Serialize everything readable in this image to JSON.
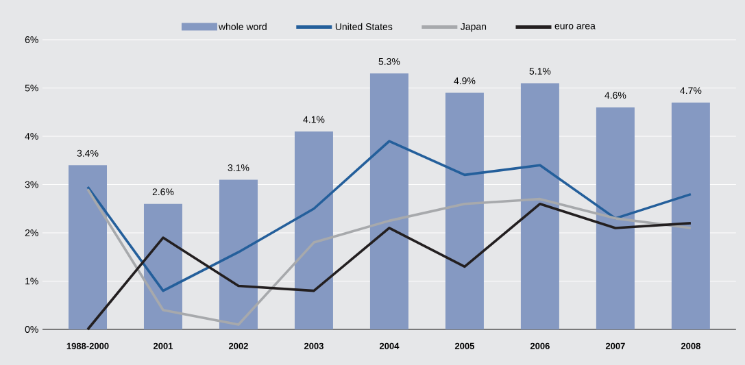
{
  "chart_data": {
    "type": "bar",
    "categories": [
      "1988-2000",
      "2001",
      "2002",
      "2003",
      "2004",
      "2005",
      "2006",
      "2007",
      "2008"
    ],
    "series": [
      {
        "name": "whole word",
        "color": "#8599c2",
        "values": [
          3.4,
          2.6,
          3.1,
          4.1,
          5.3,
          4.9,
          5.1,
          4.6,
          4.7
        ],
        "value_labels": [
          "3.4%",
          "2.6%",
          "3.1%",
          "4.1%",
          "5.3%",
          "4.9%",
          "5.1%",
          "4.6%",
          "4.7%"
        ]
      },
      {
        "name": "United States",
        "type": "line",
        "color": "#245f9b",
        "values": [
          2.95,
          0.8,
          1.6,
          2.5,
          3.9,
          3.2,
          3.4,
          2.3,
          2.8
        ]
      },
      {
        "name": "Japan",
        "type": "line",
        "color": "#a7a9ac",
        "values": [
          2.9,
          0.4,
          0.1,
          1.8,
          2.25,
          2.6,
          2.7,
          2.3,
          2.1
        ]
      },
      {
        "name": "euro area",
        "type": "line",
        "color": "#231f20",
        "values": [
          0,
          1.9,
          0.9,
          0.8,
          2.1,
          1.3,
          2.6,
          2.1,
          2.2
        ]
      }
    ],
    "ylim": [
      0,
      6
    ],
    "yticks": [
      {
        "value": 0,
        "label": "0%"
      },
      {
        "value": 1,
        "label": "1%"
      },
      {
        "value": 2,
        "label": "2%"
      },
      {
        "value": 3,
        "label": "3%"
      },
      {
        "value": 4,
        "label": "4%"
      },
      {
        "value": 5,
        "label": "5%"
      },
      {
        "value": 6,
        "label": "6%"
      }
    ],
    "grid": "y",
    "legend": "top",
    "marker": "none",
    "line_style": "solid"
  }
}
